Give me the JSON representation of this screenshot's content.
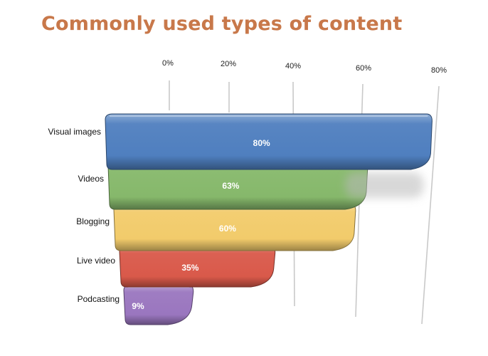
{
  "title": "Commonly used types of content",
  "chart_data": {
    "type": "bar",
    "orientation": "horizontal",
    "title": "Commonly used types of content",
    "xlabel": "",
    "ylabel": "",
    "xlim": [
      0,
      80
    ],
    "ticks": [
      "0%",
      "20%",
      "40%",
      "60%",
      "80%"
    ],
    "tick_values": [
      0,
      20,
      40,
      60,
      80
    ],
    "grid": true,
    "categories": [
      "Visual images",
      "Videos",
      "Blogging",
      "Live video",
      "Podcasting"
    ],
    "values": [
      80,
      63,
      60,
      35,
      9
    ],
    "value_labels": [
      "80%",
      "63%",
      "60%",
      "35%",
      "9%"
    ],
    "colors": [
      "#4f7fbf",
      "#86b86b",
      "#f2cb6b",
      "#d9594a",
      "#9a76bf"
    ]
  }
}
